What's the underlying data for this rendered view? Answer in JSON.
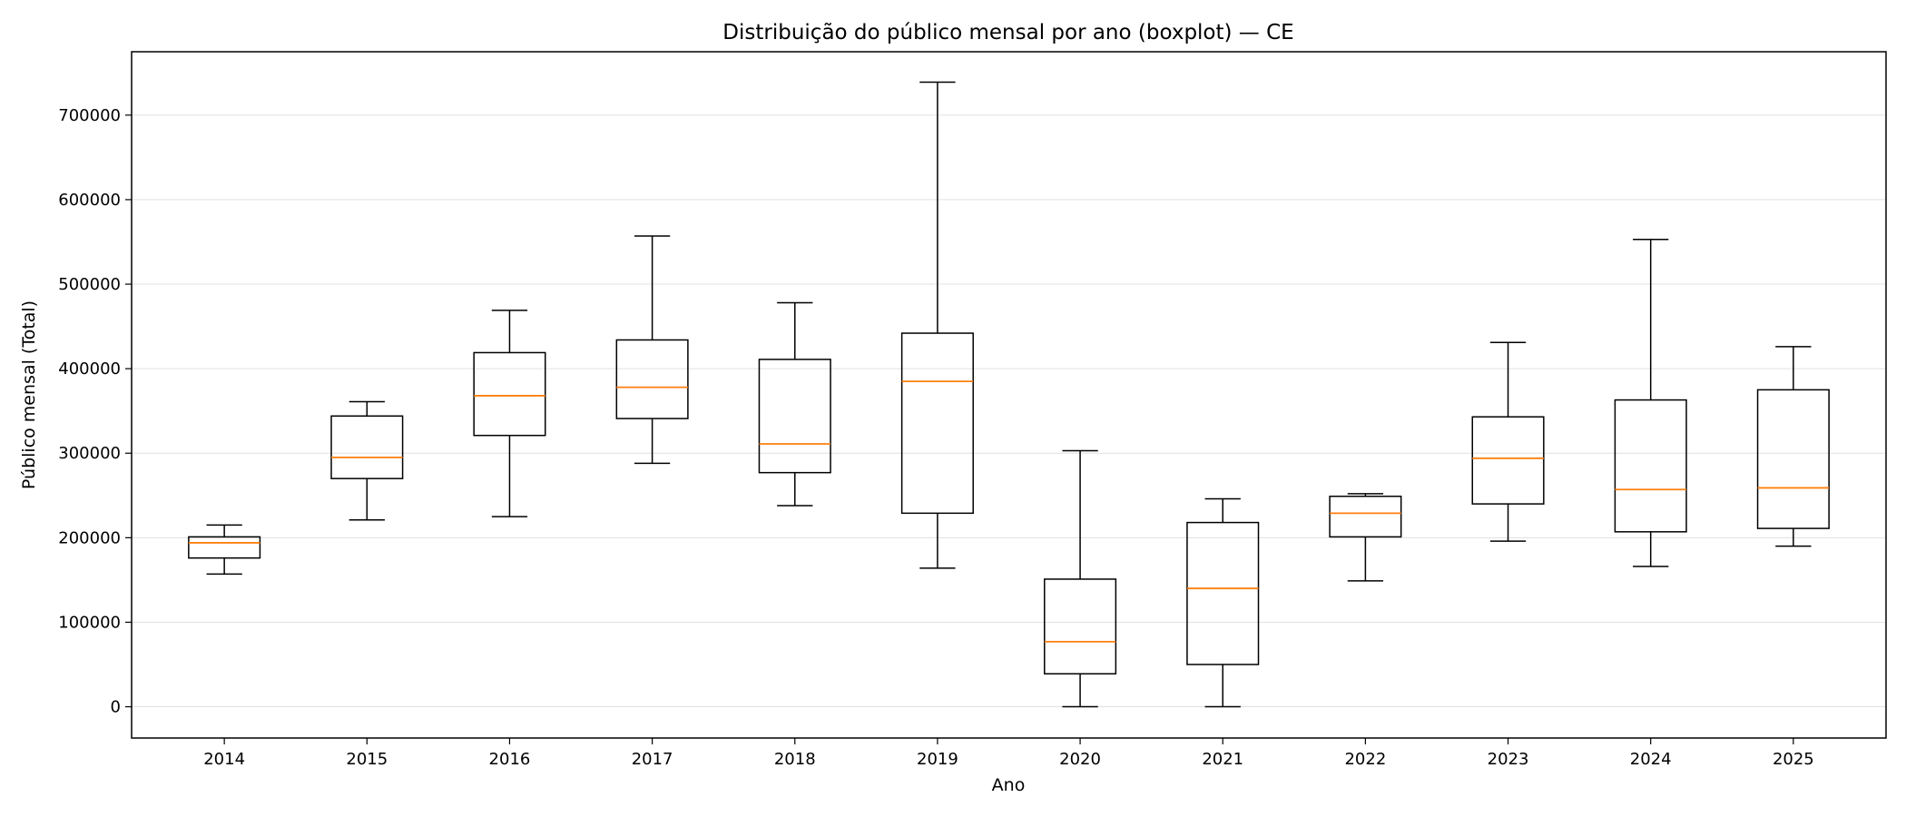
{
  "chart_data": {
    "type": "boxplot",
    "title": "Distribuição do público mensal por ano (boxplot) — CE",
    "xlabel": "Ano",
    "ylabel": "Público mensal (Total)",
    "ylim": [
      -37000,
      775000
    ],
    "yticks": [
      0,
      100000,
      200000,
      300000,
      400000,
      500000,
      600000,
      700000
    ],
    "grid": "y",
    "colors": {
      "box": "#000000",
      "median": "#ff7f0e",
      "grid": "#e0e0e0"
    },
    "categories": [
      "2014",
      "2015",
      "2016",
      "2017",
      "2018",
      "2019",
      "2020",
      "2021",
      "2022",
      "2023",
      "2024",
      "2025"
    ],
    "boxes": [
      {
        "min": 157000,
        "q1": 176000,
        "median": 194000,
        "q3": 201000,
        "max": 215000
      },
      {
        "min": 221000,
        "q1": 270000,
        "median": 295000,
        "q3": 344000,
        "max": 361000
      },
      {
        "min": 225000,
        "q1": 321000,
        "median": 368000,
        "q3": 419000,
        "max": 469000
      },
      {
        "min": 288000,
        "q1": 341000,
        "median": 378000,
        "q3": 434000,
        "max": 557000
      },
      {
        "min": 238000,
        "q1": 277000,
        "median": 311000,
        "q3": 411000,
        "max": 478000
      },
      {
        "min": 164000,
        "q1": 229000,
        "median": 385000,
        "q3": 442000,
        "max": 739000
      },
      {
        "min": 0,
        "q1": 39000,
        "median": 77000,
        "q3": 151000,
        "max": 303000
      },
      {
        "min": 0,
        "q1": 50000,
        "median": 140000,
        "q3": 218000,
        "max": 246000
      },
      {
        "min": 149000,
        "q1": 201000,
        "median": 229000,
        "q3": 249000,
        "max": 252000
      },
      {
        "min": 196000,
        "q1": 240000,
        "median": 294000,
        "q3": 343000,
        "max": 431000
      },
      {
        "min": 166000,
        "q1": 207000,
        "median": 257000,
        "q3": 363000,
        "max": 553000
      },
      {
        "min": 190000,
        "q1": 211000,
        "median": 259000,
        "q3": 375000,
        "max": 426000
      }
    ]
  }
}
